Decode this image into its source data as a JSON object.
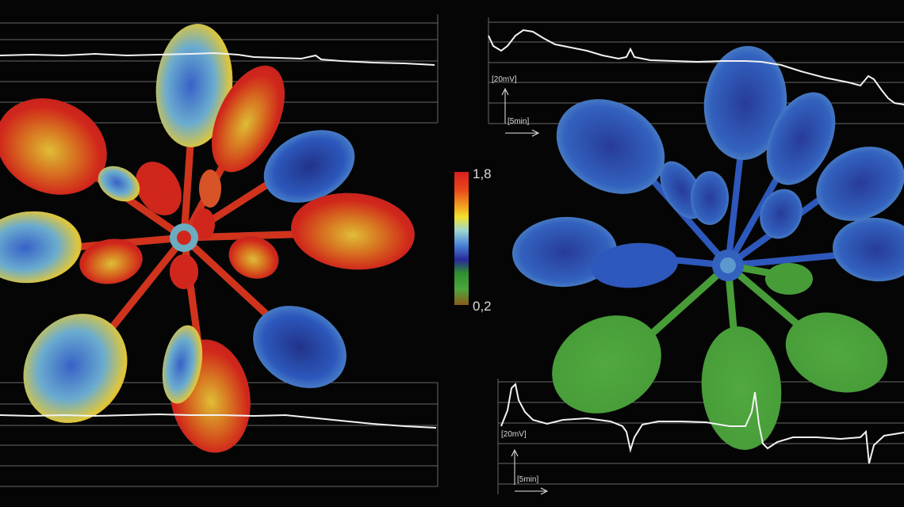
{
  "colorbar": {
    "max_label": "1,8",
    "min_label": "0,2",
    "stops": [
      "#d81e1e",
      "#ef7a1a",
      "#f2df2a",
      "#8fd1d6",
      "#3f6fd4",
      "#2a2a9a",
      "#2f8f2f",
      "#58b84a",
      "#8a5a1a"
    ]
  },
  "recordings": {
    "top_right": {
      "voltage_label": "[20mV]",
      "time_label": "[5min]"
    },
    "bottom_right": {
      "voltage_label": "[20mV]",
      "time_label": "[5min]"
    }
  },
  "colors": {
    "background": "#050505",
    "gridline": "#8a8a8a",
    "trace": "#f2f2f2",
    "leaf_green": "#4fa83c",
    "leaf_blue": "#2f5cc4",
    "leaf_red": "#d92a1e",
    "leaf_yellow": "#e9c83a"
  }
}
